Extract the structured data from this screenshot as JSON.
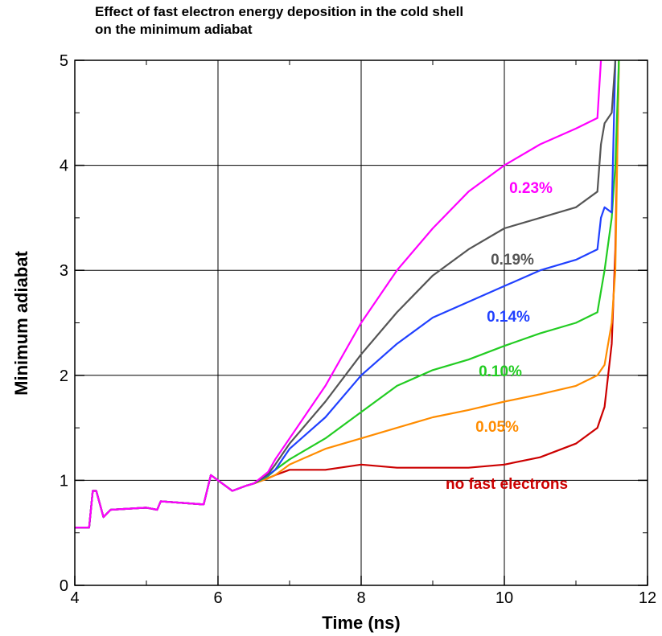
{
  "chart_data": {
    "type": "line",
    "title": [
      "Effect of fast electron energy deposition in the cold shell",
      "on the minimum adiabat"
    ],
    "x_label": "Time (ns)",
    "y_label": "Minimum adiabat",
    "x": [
      4,
      4.2,
      4.25,
      4.3,
      4.4,
      4.5,
      5.0,
      5.15,
      5.2,
      5.8,
      5.9,
      6.0,
      6.2,
      6.4,
      6.5,
      6.7,
      6.8,
      7.0,
      7.5,
      8.0,
      8.5,
      9.0,
      9.5,
      10.0,
      10.5,
      11.0,
      11.3,
      11.35,
      11.4,
      11.5,
      11.55,
      11.6
    ],
    "series": [
      {
        "name": "no fast electrons",
        "color": "#cc0000",
        "values": [
          0.55,
          0.55,
          0.9,
          0.9,
          0.65,
          0.72,
          0.74,
          0.72,
          0.8,
          0.77,
          1.05,
          1.0,
          0.9,
          0.95,
          0.97,
          1.02,
          1.05,
          1.1,
          1.1,
          1.15,
          1.12,
          1.12,
          1.12,
          1.15,
          1.22,
          1.35,
          1.5,
          1.6,
          1.7,
          2.3,
          3.2,
          5
        ]
      },
      {
        "name": "0.05%",
        "color": "#ff8c00",
        "values": [
          0.55,
          0.55,
          0.9,
          0.9,
          0.65,
          0.72,
          0.74,
          0.72,
          0.8,
          0.77,
          1.05,
          1.0,
          0.9,
          0.95,
          0.97,
          1.02,
          1.05,
          1.15,
          1.3,
          1.4,
          1.5,
          1.6,
          1.67,
          1.75,
          1.82,
          1.9,
          2.0,
          2.05,
          2.1,
          2.5,
          3.0,
          5
        ]
      },
      {
        "name": "0.10%",
        "color": "#22cc22",
        "values": [
          0.55,
          0.55,
          0.9,
          0.9,
          0.65,
          0.72,
          0.74,
          0.72,
          0.8,
          0.77,
          1.05,
          1.0,
          0.9,
          0.95,
          0.97,
          1.04,
          1.1,
          1.2,
          1.4,
          1.65,
          1.9,
          2.05,
          2.15,
          2.28,
          2.4,
          2.5,
          2.6,
          2.8,
          3.0,
          3.5,
          4.0,
          5
        ]
      },
      {
        "name": "0.14%",
        "color": "#2040ff",
        "values": [
          0.55,
          0.55,
          0.9,
          0.9,
          0.65,
          0.72,
          0.74,
          0.72,
          0.8,
          0.77,
          1.05,
          1.0,
          0.9,
          0.95,
          0.97,
          1.05,
          1.1,
          1.3,
          1.6,
          2.0,
          2.3,
          2.55,
          2.7,
          2.85,
          3.0,
          3.1,
          3.2,
          3.5,
          3.6,
          3.55,
          5,
          null
        ]
      },
      {
        "name": "0.19%",
        "color": "#555555",
        "values": [
          0.55,
          0.55,
          0.9,
          0.9,
          0.65,
          0.72,
          0.74,
          0.72,
          0.8,
          0.77,
          1.05,
          1.0,
          0.9,
          0.95,
          0.97,
          1.06,
          1.15,
          1.35,
          1.75,
          2.2,
          2.6,
          2.95,
          3.2,
          3.4,
          3.5,
          3.6,
          3.75,
          4.2,
          4.4,
          4.5,
          5,
          null
        ]
      },
      {
        "name": "0.23%",
        "color": "#ff00ff",
        "values": [
          0.55,
          0.55,
          0.9,
          0.9,
          0.65,
          0.72,
          0.74,
          0.72,
          0.8,
          0.77,
          1.05,
          1.0,
          0.9,
          0.95,
          0.97,
          1.08,
          1.2,
          1.4,
          1.9,
          2.5,
          3.0,
          3.4,
          3.75,
          4.0,
          4.2,
          4.35,
          4.45,
          5,
          null,
          null,
          null,
          null
        ]
      }
    ],
    "xlim": [
      4,
      12
    ],
    "ylim": [
      0,
      5
    ],
    "xticks": [
      4,
      6,
      8,
      10,
      12
    ],
    "yticks": [
      0,
      1,
      2,
      3,
      4,
      5
    ],
    "grid": true
  }
}
